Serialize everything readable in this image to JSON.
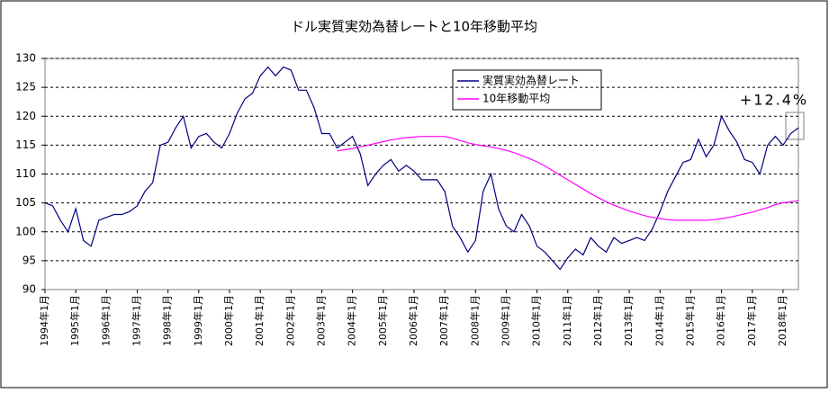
{
  "chart_data": {
    "type": "line",
    "title": "ドル実質実効為替レートと10年移動平均",
    "annotation": "+12.4%",
    "categories": [
      "1994年1月",
      null,
      null,
      null,
      "1995年1月",
      null,
      null,
      null,
      "1996年1月",
      null,
      null,
      null,
      "1997年1月",
      null,
      null,
      null,
      "1998年1月",
      null,
      null,
      null,
      "1999年1月",
      null,
      null,
      null,
      "2000年1月",
      null,
      null,
      null,
      "2001年1月",
      null,
      null,
      null,
      "2002年1月",
      null,
      null,
      null,
      "2003年1月",
      null,
      null,
      null,
      "2004年1月",
      null,
      null,
      null,
      "2005年1月",
      null,
      null,
      null,
      "2006年1月",
      null,
      null,
      null,
      "2007年1月",
      null,
      null,
      null,
      "2008年1月",
      null,
      null,
      null,
      "2009年1月",
      null,
      null,
      null,
      "2010年1月",
      null,
      null,
      null,
      "2011年1月",
      null,
      null,
      null,
      "2012年1月",
      null,
      null,
      null,
      "2013年1月",
      null,
      null,
      null,
      "2014年1月",
      null,
      null,
      null,
      "2015年1月",
      null,
      null,
      null,
      "2016年1月",
      null,
      null,
      null,
      "2017年1月",
      null,
      null,
      null,
      "2018年1月",
      null,
      null
    ],
    "series": [
      {
        "name": "実質実効為替レート",
        "color": "#000080",
        "values": [
          105,
          104.5,
          102,
          100,
          104,
          98.5,
          97.5,
          102,
          102.5,
          103,
          103,
          103.5,
          104.5,
          107,
          108.5,
          115,
          115.5,
          118,
          120,
          114.5,
          116.5,
          117,
          115.5,
          114.5,
          117,
          120.5,
          123,
          124,
          127,
          128.5,
          127,
          128.5,
          128,
          124.5,
          124.5,
          121.5,
          117,
          117,
          114.5,
          115.5,
          116.5,
          113.5,
          108,
          110,
          111.5,
          112.5,
          110.5,
          111.5,
          110.5,
          109,
          109,
          109,
          107,
          101,
          99,
          96.5,
          98.5,
          107,
          110,
          104,
          101,
          100,
          103,
          101,
          97.5,
          96.5,
          95,
          93.5,
          95.5,
          97,
          96,
          99,
          97.5,
          96.5,
          99,
          98,
          98.5,
          99,
          98.5,
          100.5,
          103.5,
          107,
          109.5,
          112,
          112.5,
          116,
          113,
          115,
          120,
          117.5,
          115.5,
          112.5,
          112,
          110,
          115,
          116.5,
          115,
          117,
          118
        ]
      },
      {
        "name": "10年移動平均",
        "color": "#ff00ff",
        "values": [
          null,
          null,
          null,
          null,
          null,
          null,
          null,
          null,
          null,
          null,
          null,
          null,
          null,
          null,
          null,
          null,
          null,
          null,
          null,
          null,
          null,
          null,
          null,
          null,
          null,
          null,
          null,
          null,
          null,
          null,
          null,
          null,
          null,
          null,
          null,
          null,
          null,
          null,
          114,
          114.2,
          114.4,
          114.7,
          115,
          115.3,
          115.6,
          115.9,
          116.1,
          116.3,
          116.4,
          116.5,
          116.5,
          116.5,
          116.5,
          116.2,
          115.8,
          115.4,
          115.1,
          114.9,
          114.7,
          114.4,
          114.1,
          113.7,
          113.2,
          112.7,
          112.1,
          111.4,
          110.6,
          109.8,
          109,
          108.2,
          107.4,
          106.6,
          105.9,
          105.2,
          104.6,
          104.1,
          103.6,
          103.2,
          102.8,
          102.5,
          102.3,
          102.1,
          102,
          102,
          102,
          102,
          102,
          102.1,
          102.3,
          102.5,
          102.8,
          103.1,
          103.4,
          103.8,
          104.2,
          104.7,
          105,
          105.2,
          105.4
        ]
      }
    ],
    "ylim": [
      90,
      130
    ],
    "yticks": [
      90,
      95,
      100,
      105,
      110,
      115,
      120,
      125,
      130
    ],
    "grid": true
  }
}
